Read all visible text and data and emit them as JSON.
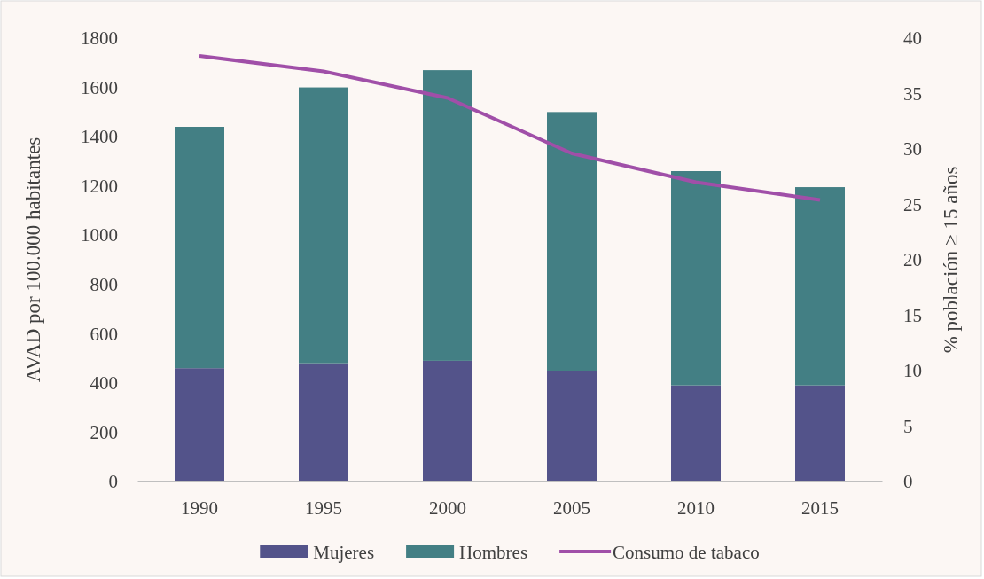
{
  "chart_data": {
    "type": "bar",
    "stacked": true,
    "categories": [
      "1990",
      "1995",
      "2000",
      "2005",
      "2010",
      "2015"
    ],
    "series": [
      {
        "name": "Mujeres",
        "color": "#53538a",
        "values": [
          460,
          480,
          490,
          450,
          390,
          390
        ]
      },
      {
        "name": "Hombres",
        "color": "#437f84",
        "values": [
          980,
          1120,
          1180,
          1050,
          870,
          805
        ]
      },
      {
        "name": "Consumo de tabaco",
        "type": "line",
        "axis": "y2",
        "color": "#a04fa8",
        "values": [
          38.4,
          37,
          34.6,
          29.6,
          27,
          25.4
        ]
      }
    ],
    "ylabel": "AVAD por 100.000 habitantes",
    "y2label": "% población ≥ 15 años",
    "ylim": [
      0,
      1800
    ],
    "yticks": [
      0,
      200,
      400,
      600,
      800,
      1000,
      1200,
      1400,
      1600,
      1800
    ],
    "y2lim": [
      0,
      40
    ],
    "y2ticks": [
      0,
      5,
      10,
      15,
      20,
      25,
      30,
      35,
      40
    ],
    "grid": false,
    "legend": "bottom",
    "marker": "none",
    "line_style": "solid"
  }
}
